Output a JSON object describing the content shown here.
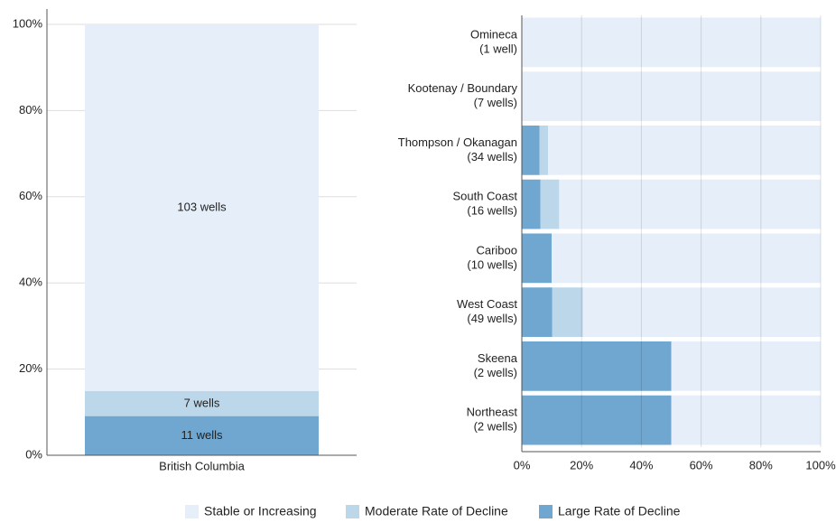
{
  "chart_data": [
    {
      "type": "stacked_bar",
      "categories": [
        "British Columbia"
      ],
      "series": [
        {
          "name": "Large Rate of Decline",
          "color": "#6fa7d1",
          "values": [
            9.09
          ],
          "value_labels": [
            "11 wells"
          ]
        },
        {
          "name": "Moderate Rate of Decline",
          "color": "#bdd7ea",
          "values": [
            5.79
          ],
          "value_labels": [
            "7 wells"
          ]
        },
        {
          "name": "Stable or Increasing",
          "color": "#e6eff9",
          "values": [
            85.12
          ],
          "value_labels": [
            "103 wells"
          ]
        }
      ],
      "ylim": [
        0,
        100
      ],
      "yticks": [
        {
          "value": 0,
          "label": "0%"
        },
        {
          "value": 20,
          "label": "20%"
        },
        {
          "value": 40,
          "label": "40%"
        },
        {
          "value": 60,
          "label": "60%"
        },
        {
          "value": 80,
          "label": "80%"
        },
        {
          "value": 100,
          "label": "100%"
        }
      ],
      "grid": true
    },
    {
      "type": "stacked_barh",
      "categories": [
        [
          "Omineca",
          "(1 well)"
        ],
        [
          "Kootenay / Boundary",
          "(7 wells)"
        ],
        [
          "Thompson / Okanagan",
          "(34 wells)"
        ],
        [
          "South Coast",
          "(16 wells)"
        ],
        [
          "Cariboo",
          "(10 wells)"
        ],
        [
          "West Coast",
          "(49 wells)"
        ],
        [
          "Skeena",
          "(2 wells)"
        ],
        [
          "Northeast",
          "(2 wells)"
        ]
      ],
      "series": [
        {
          "color": "#6fa7d1",
          "values": [
            0,
            0,
            5.9,
            6.25,
            10,
            10.2,
            50,
            50
          ]
        },
        {
          "color": "#bdd7ea",
          "values": [
            0,
            0,
            2.9,
            6.25,
            0,
            10.2,
            0,
            0
          ]
        },
        {
          "color": "#e6eff9",
          "values": [
            100,
            100,
            91.2,
            87.5,
            90,
            79.6,
            50,
            50
          ]
        }
      ],
      "xlim": [
        0,
        100
      ],
      "xticks": [
        {
          "value": 0,
          "label": "0%"
        },
        {
          "value": 20,
          "label": "20%"
        },
        {
          "value": 40,
          "label": "40%"
        },
        {
          "value": 60,
          "label": "60%"
        },
        {
          "value": 80,
          "label": "80%"
        },
        {
          "value": 100,
          "label": "100%"
        }
      ],
      "grid": true
    }
  ]
}
